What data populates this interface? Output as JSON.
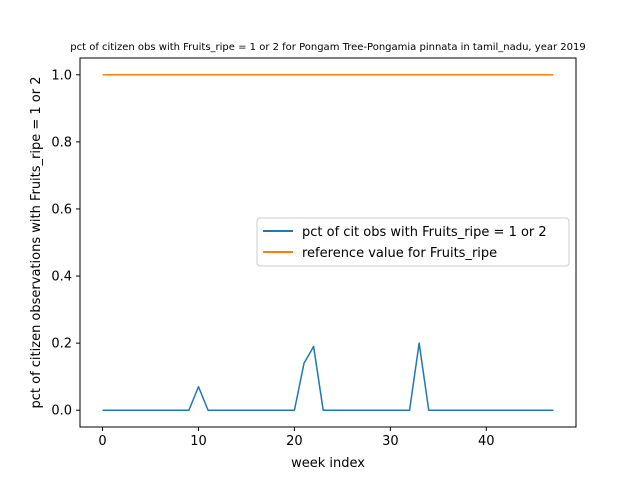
{
  "chart_data": {
    "type": "line",
    "title": "pct of citizen obs with Fruits_ripe = 1 or 2 for Pongam Tree-Pongamia pinnata in tamil_nadu, year 2019",
    "xlabel": "week index",
    "ylabel": "pct of citizen observations with Fruits_ripe = 1 or 2",
    "xlim": [
      -2.35,
      49.35
    ],
    "ylim": [
      -0.05,
      1.05
    ],
    "xticks": [
      0,
      10,
      20,
      30,
      40
    ],
    "yticks": [
      0.0,
      0.2,
      0.4,
      0.6,
      0.8,
      1.0
    ],
    "xtick_labels": [
      "0",
      "10",
      "20",
      "30",
      "40"
    ],
    "ytick_labels": [
      "0.0",
      "0.2",
      "0.4",
      "0.6",
      "0.8",
      "1.0"
    ],
    "grid": false,
    "legend_position": "center-right",
    "series": [
      {
        "name": "pct of cit obs with Fruits_ripe = 1 or 2",
        "color": "#1f77b4",
        "x": [
          0,
          1,
          2,
          3,
          4,
          5,
          6,
          7,
          8,
          9,
          10,
          11,
          12,
          13,
          14,
          15,
          16,
          17,
          18,
          19,
          20,
          21,
          22,
          23,
          24,
          25,
          26,
          27,
          28,
          29,
          30,
          31,
          32,
          33,
          34,
          35,
          36,
          37,
          38,
          39,
          40,
          41,
          42,
          43,
          44,
          45,
          46,
          47
        ],
        "values": [
          0,
          0,
          0,
          0,
          0,
          0,
          0,
          0,
          0,
          0,
          0.07,
          0,
          0,
          0,
          0,
          0,
          0,
          0,
          0,
          0,
          0,
          0.14,
          0.19,
          0,
          0,
          0,
          0,
          0,
          0,
          0,
          0,
          0,
          0,
          0.2,
          0,
          0,
          0,
          0,
          0,
          0,
          0,
          0,
          0,
          0,
          0,
          0,
          0,
          0
        ]
      },
      {
        "name": "reference value for Fruits_ripe",
        "color": "#ff7f0e",
        "x": [
          0,
          1,
          2,
          3,
          4,
          5,
          6,
          7,
          8,
          9,
          10,
          11,
          12,
          13,
          14,
          15,
          16,
          17,
          18,
          19,
          20,
          21,
          22,
          23,
          24,
          25,
          26,
          27,
          28,
          29,
          30,
          31,
          32,
          33,
          34,
          35,
          36,
          37,
          38,
          39,
          40,
          41,
          42,
          43,
          44,
          45,
          46,
          47
        ],
        "values": [
          1,
          1,
          1,
          1,
          1,
          1,
          1,
          1,
          1,
          1,
          1,
          1,
          1,
          1,
          1,
          1,
          1,
          1,
          1,
          1,
          1,
          1,
          1,
          1,
          1,
          1,
          1,
          1,
          1,
          1,
          1,
          1,
          1,
          1,
          1,
          1,
          1,
          1,
          1,
          1,
          1,
          1,
          1,
          1,
          1,
          1,
          1,
          1
        ]
      }
    ]
  }
}
